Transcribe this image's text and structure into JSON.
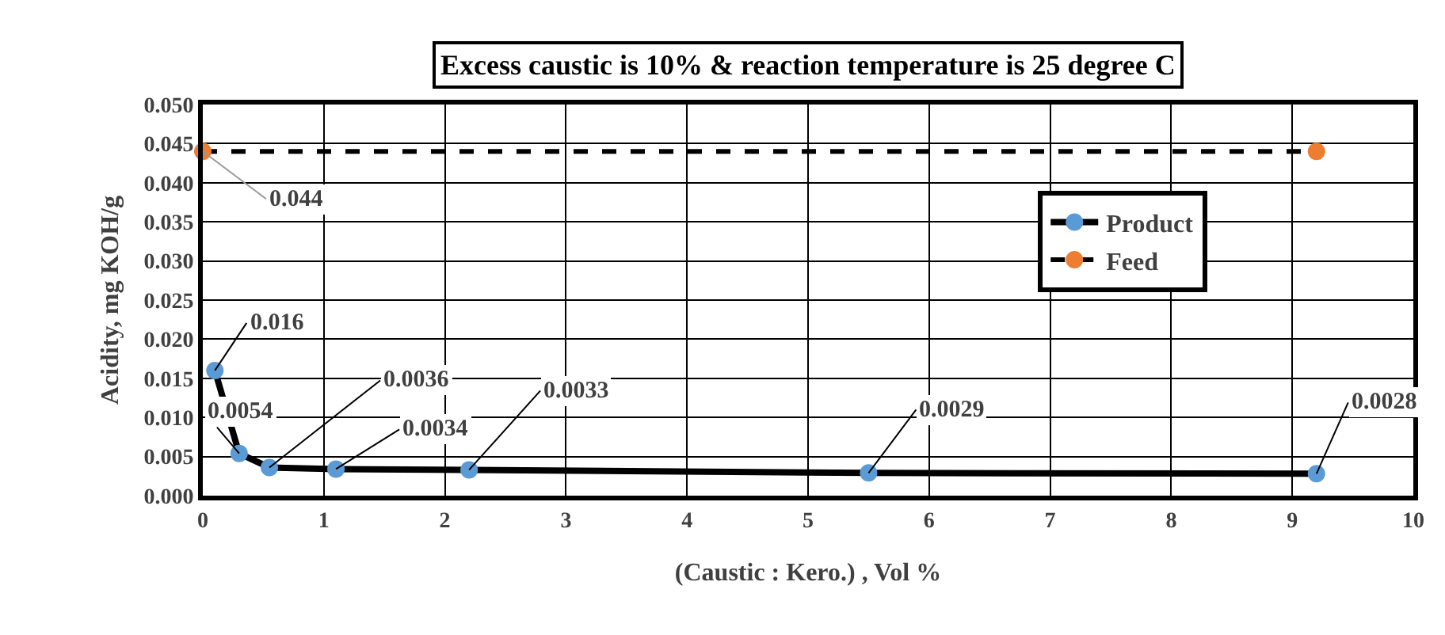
{
  "chart_data": {
    "type": "line",
    "title": "Excess caustic is 10% & reaction temperature is 25 degree C",
    "xlabel": "(Caustic : Kero.) , Vol %",
    "ylabel": "Acidity, mg KOH/g",
    "xlim": [
      0,
      10
    ],
    "xticks": [
      0,
      1,
      2,
      3,
      4,
      5,
      6,
      7,
      8,
      9,
      10
    ],
    "ylim": [
      0,
      0.05
    ],
    "yticks": [
      {
        "value": 0,
        "label": "0.000"
      },
      {
        "value": 0.005,
        "label": "0.005"
      },
      {
        "value": 0.01,
        "label": "0.010"
      },
      {
        "value": 0.015,
        "label": "0.015"
      },
      {
        "value": 0.02,
        "label": "0.020"
      },
      {
        "value": 0.025,
        "label": "0.025"
      },
      {
        "value": 0.03,
        "label": "0.030"
      },
      {
        "value": 0.035,
        "label": "0.035"
      },
      {
        "value": 0.04,
        "label": "0.040"
      },
      {
        "value": 0.045,
        "label": "0.045"
      },
      {
        "value": 0.05,
        "label": "0.050"
      }
    ],
    "grid": true,
    "legend": "top right",
    "marker": "circle",
    "series": [
      {
        "name": "Product",
        "color": "#000000",
        "colors": [
          "#5b9bd5",
          "#5b9bd5",
          "#5b9bd5",
          "#5b9bd5",
          "#5b9bd5",
          "#5b9bd5",
          "#5b9bd5"
        ],
        "line_style": "solid",
        "x": [
          0.1,
          0.3,
          0.55,
          1.1,
          2.2,
          5.5,
          9.2
        ],
        "values": [
          0.016,
          0.0054,
          0.0036,
          0.0034,
          0.0033,
          0.0029,
          0.0028
        ],
        "value_labels": [
          "0.016",
          "0.0054",
          "0.0036",
          "0.0034",
          "0.0033",
          "0.0029",
          "0.0028"
        ]
      },
      {
        "name": "Feed",
        "color": "#000000",
        "colors": [
          "#ed7d31",
          "#ed7d31"
        ],
        "line_style": "dashed",
        "x": [
          0,
          9.2
        ],
        "values": [
          0.044,
          0.044
        ],
        "value_labels": [
          "0.044",
          null
        ]
      }
    ]
  }
}
